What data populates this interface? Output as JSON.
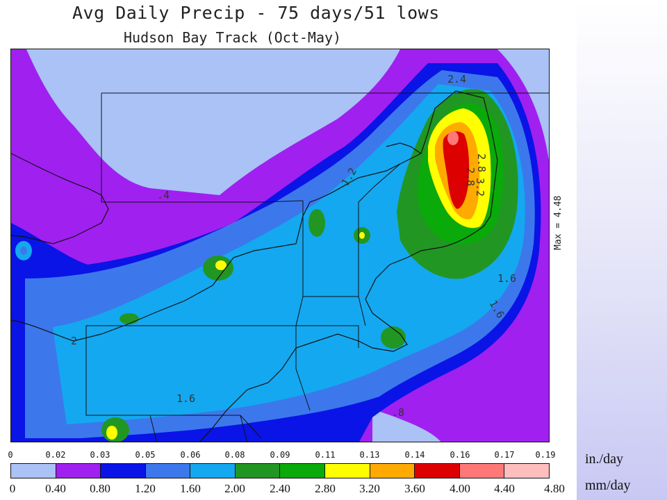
{
  "title": "Avg Daily Precip - 75 days/51 lows",
  "subtitle": "Hudson Bay Track (Oct-May)",
  "max_label": "Max = 4.48",
  "map": {
    "contour_labels": [
      "2.4",
      "2.8",
      "2.8",
      "3.2",
      "1.2",
      ".4",
      "1.6",
      "1.6",
      "1.6",
      ".8",
      "2"
    ]
  },
  "legend": {
    "in_day_ticks": [
      "0",
      "0.02",
      "0.03",
      "0.05",
      "0.06",
      "0.08",
      "0.09",
      "0.11",
      "0.13",
      "0.14",
      "0.16",
      "0.17",
      "0.19"
    ],
    "mm_day_ticks": [
      "0",
      "0.40",
      "0.80",
      "1.20",
      "1.60",
      "2.00",
      "2.40",
      "2.80",
      "3.20",
      "3.60",
      "4.00",
      "4.40",
      "4.80"
    ],
    "colors": [
      "#aac2f6",
      "#a020f0",
      "#0a14e6",
      "#3c78ec",
      "#14a8f0",
      "#229622",
      "#0aaa0a",
      "#ffff00",
      "#ffaa00",
      "#dc0000",
      "#ff7878",
      "#ffbebe"
    ],
    "unit_in": "in./day",
    "unit_mm": "mm/day"
  }
}
